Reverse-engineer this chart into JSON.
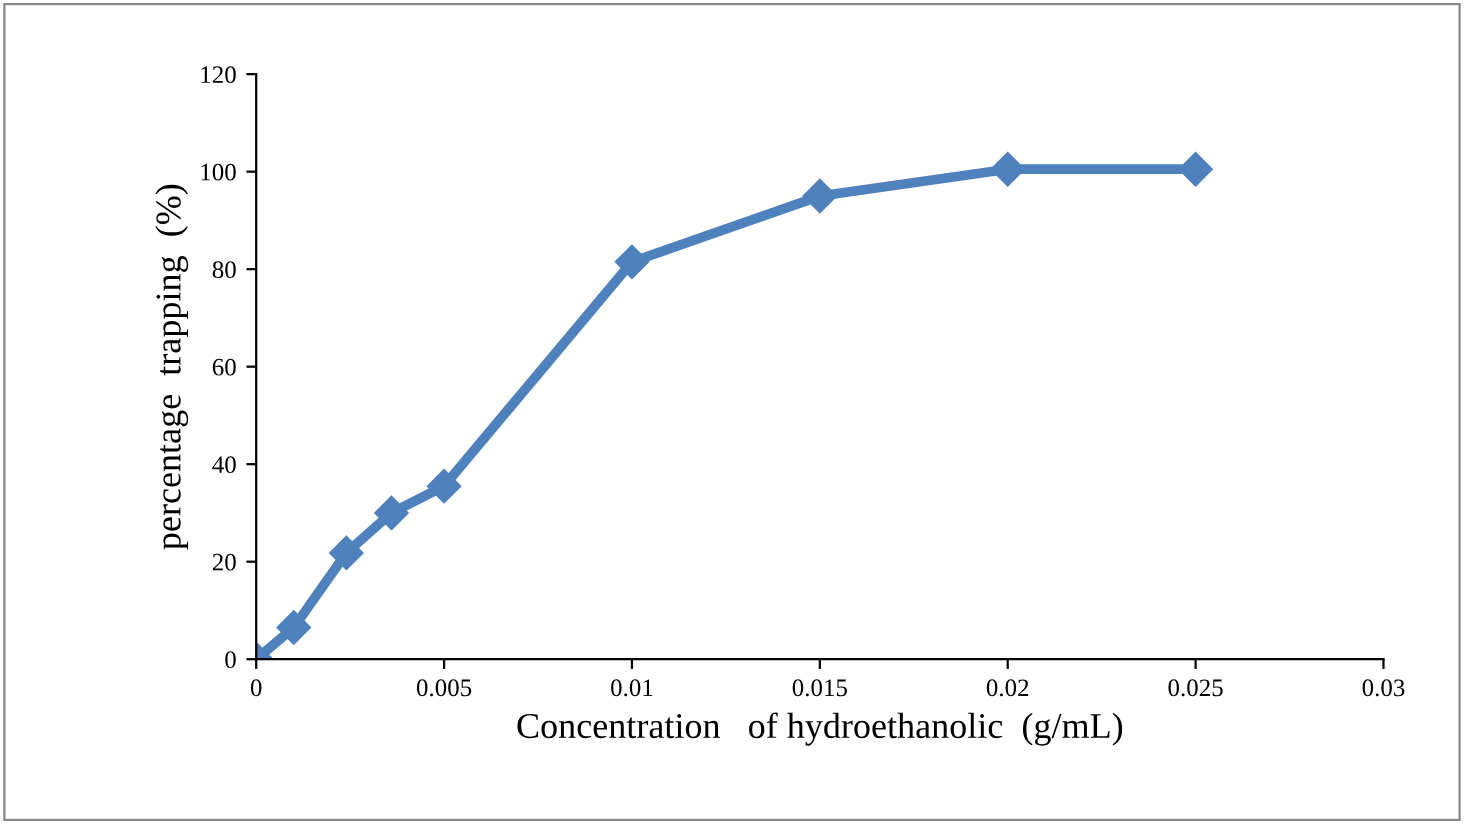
{
  "chart_data": {
    "type": "line",
    "xlabel": "Concentration   of hydroethanolic  (g/mL)",
    "ylabel": "percentage  trapping  (%)",
    "x": [
      0,
      0.001,
      0.0024,
      0.0036,
      0.005,
      0.01,
      0.015,
      0.02,
      0.025
    ],
    "series": [
      {
        "color": "#4f81bd",
        "values": [
          0,
          6.5,
          21.8,
          30,
          35.5,
          81.5,
          95,
          100.5,
          100.5
        ]
      }
    ],
    "xlim": [
      0,
      0.03
    ],
    "xticks": [
      0,
      0.005,
      0.01,
      0.015,
      0.02,
      0.025,
      0.03
    ],
    "ylim": [
      0,
      120
    ],
    "yticks": [
      0,
      20,
      40,
      60,
      80,
      100,
      120
    ],
    "marker": "diamond",
    "line_style": "solid",
    "grid": false,
    "legend": false
  }
}
